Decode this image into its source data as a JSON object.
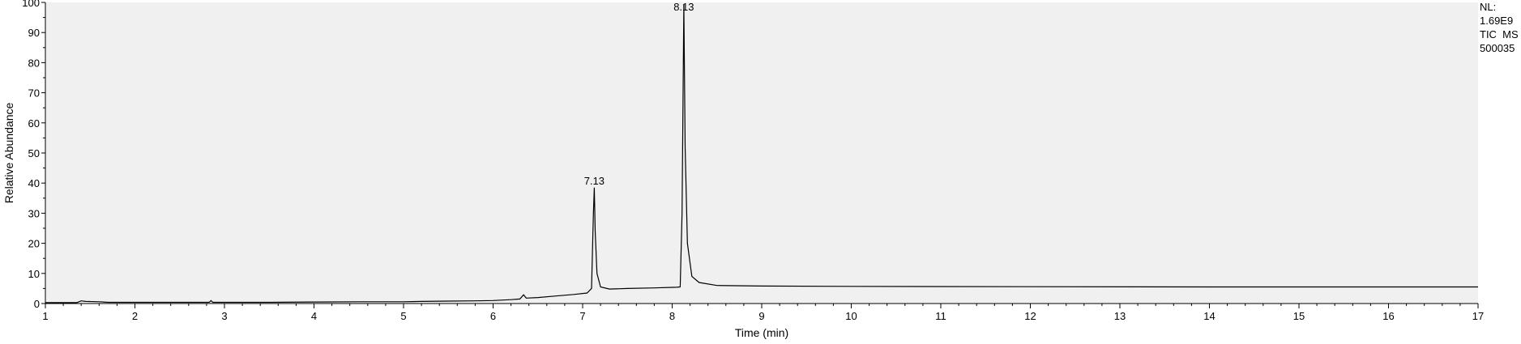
{
  "chart_data": {
    "type": "line",
    "title": "",
    "xlabel": "Time (min)",
    "ylabel": "Relative Abundance",
    "xlim": [
      1,
      17
    ],
    "ylim": [
      0,
      100
    ],
    "x_ticks": [
      1,
      2,
      3,
      4,
      5,
      6,
      7,
      8,
      9,
      10,
      11,
      12,
      13,
      14,
      15,
      16,
      17
    ],
    "y_ticks": [
      0,
      10,
      20,
      30,
      40,
      50,
      60,
      70,
      80,
      90,
      100
    ],
    "grid": false,
    "background": "#f0f0f0",
    "line_color": "#000000",
    "info_text": [
      "NL:",
      "1.69E9",
      "TIC  MS",
      "500035"
    ],
    "peak_labels": [
      {
        "x": 7.13,
        "y": 38.5,
        "text": "7.13"
      },
      {
        "x": 8.13,
        "y": 99.5,
        "text": "8.13"
      }
    ],
    "series": [
      {
        "points": [
          [
            1.0,
            0.3
          ],
          [
            1.35,
            0.3
          ],
          [
            1.4,
            0.9
          ],
          [
            1.45,
            0.7
          ],
          [
            1.6,
            0.6
          ],
          [
            1.7,
            0.4
          ],
          [
            2.0,
            0.4
          ],
          [
            2.5,
            0.4
          ],
          [
            2.83,
            0.4
          ],
          [
            2.85,
            1.0
          ],
          [
            2.87,
            0.4
          ],
          [
            3.5,
            0.4
          ],
          [
            4.0,
            0.5
          ],
          [
            4.5,
            0.6
          ],
          [
            5.0,
            0.6
          ],
          [
            5.2,
            0.7
          ],
          [
            5.5,
            0.8
          ],
          [
            5.8,
            0.9
          ],
          [
            6.0,
            1.0
          ],
          [
            6.2,
            1.3
          ],
          [
            6.3,
            1.5
          ],
          [
            6.34,
            2.9
          ],
          [
            6.37,
            1.8
          ],
          [
            6.5,
            2.0
          ],
          [
            6.7,
            2.5
          ],
          [
            6.9,
            3.0
          ],
          [
            7.05,
            3.5
          ],
          [
            7.1,
            5.0
          ],
          [
            7.12,
            30.0
          ],
          [
            7.13,
            38.5
          ],
          [
            7.14,
            24.0
          ],
          [
            7.16,
            10.0
          ],
          [
            7.2,
            5.5
          ],
          [
            7.3,
            4.8
          ],
          [
            7.5,
            5.0
          ],
          [
            7.8,
            5.2
          ],
          [
            8.05,
            5.4
          ],
          [
            8.09,
            5.5
          ],
          [
            8.11,
            30.0
          ],
          [
            8.13,
            99.5
          ],
          [
            8.145,
            52.0
          ],
          [
            8.17,
            20.0
          ],
          [
            8.22,
            9.0
          ],
          [
            8.3,
            7.0
          ],
          [
            8.5,
            6.0
          ],
          [
            9.0,
            5.8
          ],
          [
            10.0,
            5.7
          ],
          [
            12.0,
            5.6
          ],
          [
            14.0,
            5.5
          ],
          [
            16.0,
            5.5
          ],
          [
            17.0,
            5.5
          ]
        ]
      }
    ]
  }
}
